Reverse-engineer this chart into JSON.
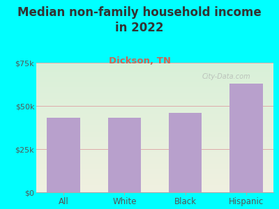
{
  "title": "Median non-family household income\nin 2022",
  "subtitle": "Dickson, TN",
  "categories": [
    "All",
    "White",
    "Black",
    "Hispanic"
  ],
  "values": [
    43000,
    43000,
    46000,
    63000
  ],
  "bar_color": "#b8a0cc",
  "title_fontsize": 12,
  "subtitle_fontsize": 9.5,
  "subtitle_color": "#cc6655",
  "title_color": "#333333",
  "tick_color": "#555555",
  "ylim": [
    0,
    75000
  ],
  "yticks": [
    0,
    25000,
    50000,
    75000
  ],
  "ytick_labels": [
    "$0",
    "$25k",
    "$50k",
    "$75k"
  ],
  "bg_outer": "#00ffff",
  "bg_plot_top_color": "#d8f0d8",
  "bg_plot_bottom_color": "#f0f0e0",
  "grid_color": "#ddaaaa",
  "watermark": "City-Data.com"
}
